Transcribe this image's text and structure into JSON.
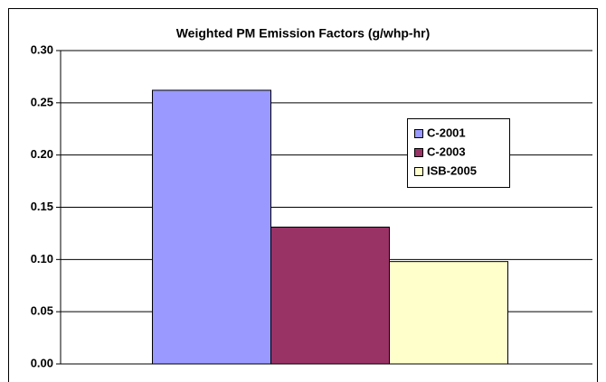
{
  "chart_data": {
    "type": "bar",
    "title": "Weighted PM Emission Factors (g/whp-hr)",
    "categories": [
      null
    ],
    "series": [
      {
        "name": "C-2001",
        "color": "#9999ff",
        "values": [
          0.262
        ]
      },
      {
        "name": "C-2003",
        "color": "#993366",
        "values": [
          0.131
        ]
      },
      {
        "name": "ISB-2005",
        "color": "#ffffcc",
        "values": [
          0.098
        ]
      }
    ],
    "ylim": [
      0,
      0.3
    ],
    "yticks": [
      {
        "value": 0,
        "label": "0.00"
      },
      {
        "value": 0.05,
        "label": "0.05"
      },
      {
        "value": 0.1,
        "label": "0.10"
      },
      {
        "value": 0.15,
        "label": "0.15"
      },
      {
        "value": 0.2,
        "label": "0.20"
      },
      {
        "value": 0.25,
        "label": "0.25"
      },
      {
        "value": 0.3,
        "label": "0.30"
      }
    ],
    "grid": true,
    "legend": "right"
  }
}
